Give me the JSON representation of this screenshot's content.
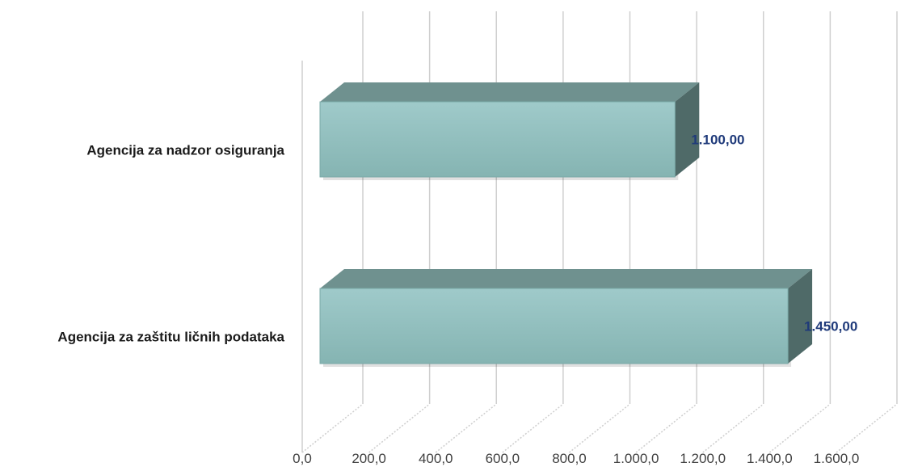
{
  "chart_data": {
    "type": "bar",
    "orientation": "horizontal",
    "style": "3d",
    "categories": [
      "Agencija za nadzor osiguranja",
      "Agencija za zaštitu ličnih podataka"
    ],
    "values": [
      1100,
      1450
    ],
    "value_labels": [
      "1.100,00",
      "1.450,00"
    ],
    "x_ticks": [
      "0,0",
      "200,0",
      "400,0",
      "600,0",
      "800,0",
      "1.000,0",
      "1.200,0",
      "1.400,0",
      "1.600,0"
    ],
    "xlim": [
      0,
      1600
    ],
    "grid": true,
    "legend": "none",
    "title": "",
    "xlabel": "",
    "ylabel": ""
  },
  "colors": {
    "bar_front_top": "#9fcaca",
    "bar_front_bottom": "#85b4b2",
    "bar_top": "#6f918f",
    "bar_side": "#4f6a68",
    "value_label": "#1f3a7a",
    "gridline": "#cfcfcf"
  }
}
